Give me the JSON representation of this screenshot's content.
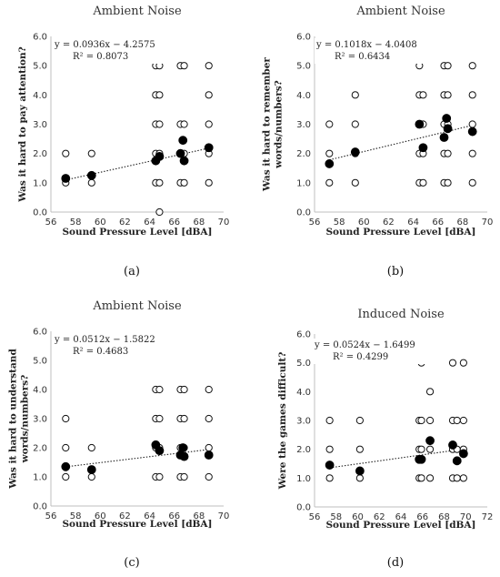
{
  "chart_data": [
    {
      "type": "scatter",
      "panel_label": "(a)",
      "title": "Ambient Noise",
      "xlabel": "Sound Pressure Level [dBA]",
      "ylabel": [
        "Was it hard to pay attention?"
      ],
      "xlim": [
        56,
        70
      ],
      "ylim": [
        0,
        6
      ],
      "xticks": [
        "56",
        "58",
        "60",
        "62",
        "64",
        "66",
        "68",
        "70"
      ],
      "yticks": [
        "0.0",
        "1.0",
        "2.0",
        "3.0",
        "4.0",
        "5.0",
        "6.0"
      ],
      "equation": "y = 0.0936x − 4.2575",
      "r2": "R² = 0.8073",
      "trendline": {
        "slope": 0.0936,
        "intercept": -4.2575
      },
      "individual": [
        [
          57.2,
          1
        ],
        [
          57.2,
          2
        ],
        [
          59.3,
          1
        ],
        [
          59.3,
          2
        ],
        [
          64.5,
          1
        ],
        [
          64.5,
          2
        ],
        [
          64.5,
          3
        ],
        [
          64.5,
          4
        ],
        [
          64.5,
          5
        ],
        [
          64.8,
          0
        ],
        [
          64.8,
          1
        ],
        [
          64.8,
          2
        ],
        [
          64.8,
          3
        ],
        [
          64.8,
          4
        ],
        [
          64.8,
          5
        ],
        [
          66.5,
          1
        ],
        [
          66.5,
          2
        ],
        [
          66.5,
          3
        ],
        [
          66.5,
          5
        ],
        [
          66.8,
          1
        ],
        [
          66.8,
          2
        ],
        [
          66.8,
          3
        ],
        [
          66.8,
          5
        ],
        [
          68.8,
          1
        ],
        [
          68.8,
          2
        ],
        [
          68.8,
          3
        ],
        [
          68.8,
          4
        ],
        [
          68.8,
          5
        ]
      ],
      "mean": [
        [
          57.2,
          1.15
        ],
        [
          59.3,
          1.25
        ],
        [
          64.5,
          1.75
        ],
        [
          64.8,
          1.9
        ],
        [
          66.5,
          2.0
        ],
        [
          66.7,
          2.45
        ],
        [
          66.8,
          1.75
        ],
        [
          68.8,
          2.2
        ]
      ]
    },
    {
      "type": "scatter",
      "panel_label": "(b)",
      "title": "Ambient Noise",
      "xlabel": "Sound Pressure Level [dBA]",
      "ylabel": [
        "Was it hard to remember",
        "words/numbers?"
      ],
      "xlim": [
        56,
        70
      ],
      "ylim": [
        0,
        6
      ],
      "xticks": [
        "56",
        "58",
        "60",
        "62",
        "64",
        "66",
        "68",
        "70"
      ],
      "yticks": [
        "0.0",
        "1.0",
        "2.0",
        "3.0",
        "4.0",
        "5.0",
        "6.0"
      ],
      "equation": "y = 0.1018x − 4.0408",
      "r2": "R² = 0.6434",
      "trendline": {
        "slope": 0.1018,
        "intercept": -4.0408
      },
      "individual": [
        [
          57.2,
          1
        ],
        [
          57.2,
          2
        ],
        [
          57.2,
          3
        ],
        [
          59.3,
          1
        ],
        [
          59.3,
          2
        ],
        [
          59.3,
          3
        ],
        [
          59.3,
          4
        ],
        [
          64.5,
          1
        ],
        [
          64.5,
          2
        ],
        [
          64.5,
          3
        ],
        [
          64.5,
          4
        ],
        [
          64.5,
          5
        ],
        [
          64.8,
          1
        ],
        [
          64.8,
          2
        ],
        [
          64.8,
          3
        ],
        [
          64.8,
          4
        ],
        [
          66.5,
          1
        ],
        [
          66.5,
          2
        ],
        [
          66.5,
          3
        ],
        [
          66.5,
          4
        ],
        [
          66.5,
          5
        ],
        [
          66.8,
          1
        ],
        [
          66.8,
          2
        ],
        [
          66.8,
          3
        ],
        [
          66.8,
          4
        ],
        [
          66.8,
          5
        ],
        [
          68.8,
          1
        ],
        [
          68.8,
          2
        ],
        [
          68.8,
          3
        ],
        [
          68.8,
          4
        ],
        [
          68.8,
          5
        ]
      ],
      "mean": [
        [
          57.2,
          1.65
        ],
        [
          59.3,
          2.05
        ],
        [
          64.5,
          3.0
        ],
        [
          64.8,
          2.2
        ],
        [
          66.5,
          2.55
        ],
        [
          66.7,
          3.2
        ],
        [
          66.8,
          2.85
        ],
        [
          68.8,
          2.75
        ]
      ]
    },
    {
      "type": "scatter",
      "panel_label": "(c)",
      "title": "Ambient Noise",
      "xlabel": "Sound Pressure Level [dBA]",
      "ylabel": [
        "Was it hard to understand",
        "words/numbers?"
      ],
      "xlim": [
        56,
        70
      ],
      "ylim": [
        0,
        6
      ],
      "xticks": [
        "56",
        "58",
        "60",
        "62",
        "64",
        "66",
        "68",
        "70"
      ],
      "yticks": [
        "0.0",
        "1.0",
        "2.0",
        "3.0",
        "4.0",
        "5.0",
        "6.0"
      ],
      "equation": "y = 0.0512x − 1.5822",
      "r2": "R² = 0.4683",
      "trendline": {
        "slope": 0.0512,
        "intercept": -1.5822
      },
      "individual": [
        [
          57.2,
          1
        ],
        [
          57.2,
          2
        ],
        [
          57.2,
          3
        ],
        [
          59.3,
          1
        ],
        [
          59.3,
          2
        ],
        [
          64.5,
          1
        ],
        [
          64.5,
          2
        ],
        [
          64.5,
          3
        ],
        [
          64.5,
          4
        ],
        [
          64.8,
          1
        ],
        [
          64.8,
          2
        ],
        [
          64.8,
          3
        ],
        [
          64.8,
          4
        ],
        [
          66.5,
          1
        ],
        [
          66.5,
          2
        ],
        [
          66.5,
          3
        ],
        [
          66.5,
          4
        ],
        [
          66.8,
          1
        ],
        [
          66.8,
          2
        ],
        [
          66.8,
          3
        ],
        [
          66.8,
          4
        ],
        [
          68.8,
          1
        ],
        [
          68.8,
          2
        ],
        [
          68.8,
          3
        ],
        [
          68.8,
          4
        ]
      ],
      "mean": [
        [
          57.2,
          1.35
        ],
        [
          59.3,
          1.25
        ],
        [
          64.5,
          2.1
        ],
        [
          64.8,
          1.9
        ],
        [
          66.5,
          1.75
        ],
        [
          66.7,
          2.0
        ],
        [
          66.8,
          1.7
        ],
        [
          68.8,
          1.75
        ]
      ]
    },
    {
      "type": "scatter",
      "panel_label": "(d)",
      "title": "Induced Noise",
      "xlabel": "Sound Pressure Level [dBA]",
      "ylabel": [
        "Were the games difficult?"
      ],
      "xlim": [
        56,
        72
      ],
      "ylim": [
        0,
        6
      ],
      "xticks": [
        "56",
        "58",
        "60",
        "62",
        "64",
        "66",
        "68",
        "70",
        "72"
      ],
      "yticks": [
        "0.0",
        "1.0",
        "2.0",
        "3.0",
        "4.0",
        "5.0",
        "6.0"
      ],
      "equation": "y = 0.0524x − 1.6499",
      "r2": "R² = 0.4299",
      "trendline": {
        "slope": 0.0524,
        "intercept": -1.6499
      },
      "individual": [
        [
          57.4,
          1
        ],
        [
          57.4,
          2
        ],
        [
          57.4,
          3
        ],
        [
          60.2,
          1
        ],
        [
          60.2,
          2
        ],
        [
          60.2,
          3
        ],
        [
          65.7,
          1
        ],
        [
          65.7,
          2
        ],
        [
          65.7,
          3
        ],
        [
          65.9,
          1
        ],
        [
          65.9,
          2
        ],
        [
          65.9,
          3
        ],
        [
          65.9,
          5
        ],
        [
          66.7,
          1
        ],
        [
          66.7,
          2
        ],
        [
          66.7,
          3
        ],
        [
          66.7,
          4
        ],
        [
          68.8,
          1
        ],
        [
          68.8,
          2
        ],
        [
          68.8,
          3
        ],
        [
          68.8,
          5
        ],
        [
          69.2,
          1
        ],
        [
          69.2,
          2
        ],
        [
          69.2,
          3
        ],
        [
          69.8,
          1
        ],
        [
          69.8,
          2
        ],
        [
          69.8,
          3
        ],
        [
          69.8,
          5
        ]
      ],
      "mean": [
        [
          57.4,
          1.45
        ],
        [
          60.2,
          1.25
        ],
        [
          65.7,
          1.65
        ],
        [
          65.9,
          1.65
        ],
        [
          66.7,
          2.3
        ],
        [
          68.8,
          2.15
        ],
        [
          69.2,
          1.6
        ],
        [
          69.8,
          1.85
        ]
      ]
    }
  ]
}
